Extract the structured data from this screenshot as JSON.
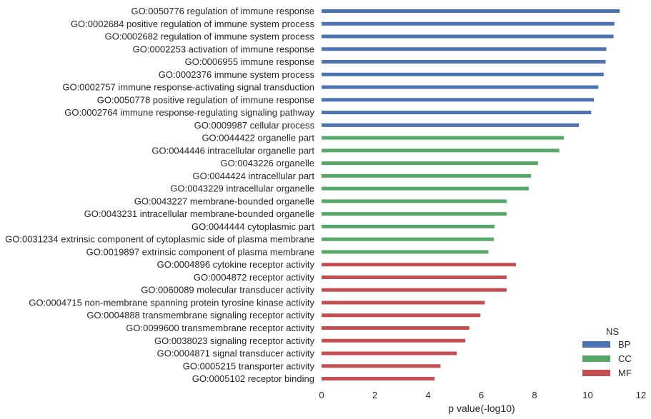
{
  "chart_data": {
    "type": "bar",
    "orientation": "horizontal",
    "xlabel": "p value(-log10)",
    "xlim": [
      0,
      12
    ],
    "xticks": [
      0,
      2,
      4,
      6,
      8,
      10,
      12
    ],
    "grid": false,
    "legend": {
      "title": "NS",
      "placement": "bottom-right",
      "entries": [
        {
          "name": "BP",
          "color": "#4c72b0"
        },
        {
          "name": "CC",
          "color": "#55a868"
        },
        {
          "name": "MF",
          "color": "#c44e52"
        }
      ]
    },
    "categories": [
      {
        "label": "GO:0050776 regulation of immune response",
        "value": 11.2,
        "ns": "BP"
      },
      {
        "label": "GO:0002684 positive regulation of immune system process",
        "value": 11.0,
        "ns": "BP"
      },
      {
        "label": "GO:0002682 regulation of immune system process",
        "value": 10.97,
        "ns": "BP"
      },
      {
        "label": "GO:0002253 activation of immune response",
        "value": 10.7,
        "ns": "BP"
      },
      {
        "label": "GO:0006955 immune response",
        "value": 10.67,
        "ns": "BP"
      },
      {
        "label": "GO:0002376 immune system process",
        "value": 10.6,
        "ns": "BP"
      },
      {
        "label": "GO:0002757 immune response-activating signal transduction",
        "value": 10.4,
        "ns": "BP"
      },
      {
        "label": "GO:0050778 positive regulation of immune response",
        "value": 10.23,
        "ns": "BP"
      },
      {
        "label": "GO:0002764 immune response-regulating signaling pathway",
        "value": 10.13,
        "ns": "BP"
      },
      {
        "label": "GO:0009987 cellular process",
        "value": 9.67,
        "ns": "BP"
      },
      {
        "label": "GO:0044422 organelle part",
        "value": 9.1,
        "ns": "CC"
      },
      {
        "label": "GO:0044446 intracellular organelle part",
        "value": 8.93,
        "ns": "CC"
      },
      {
        "label": "GO:0043226 organelle",
        "value": 8.13,
        "ns": "CC"
      },
      {
        "label": "GO:0044424 intracellular part",
        "value": 7.87,
        "ns": "CC"
      },
      {
        "label": "GO:0043229 intracellular organelle",
        "value": 7.78,
        "ns": "CC"
      },
      {
        "label": "GO:0043227 membrane-bounded organelle",
        "value": 6.95,
        "ns": "CC"
      },
      {
        "label": "GO:0043231 intracellular membrane-bounded organelle",
        "value": 6.95,
        "ns": "CC"
      },
      {
        "label": "GO:0044444 cytoplasmic part",
        "value": 6.5,
        "ns": "CC"
      },
      {
        "label": "GO:0031234 extrinsic component of cytoplasmic side of plasma membrane",
        "value": 6.47,
        "ns": "CC"
      },
      {
        "label": "GO:0019897 extrinsic component of plasma membrane",
        "value": 6.27,
        "ns": "CC"
      },
      {
        "label": "GO:0004896 cytokine receptor activity",
        "value": 7.3,
        "ns": "MF"
      },
      {
        "label": "GO:0004872 receptor activity",
        "value": 6.95,
        "ns": "MF"
      },
      {
        "label": "GO:0060089 molecular transducer activity",
        "value": 6.95,
        "ns": "MF"
      },
      {
        "label": "GO:0004715 non-membrane spanning protein tyrosine kinase activity",
        "value": 6.13,
        "ns": "MF"
      },
      {
        "label": "GO:0004888 transmembrane signaling receptor activity",
        "value": 5.97,
        "ns": "MF"
      },
      {
        "label": "GO:0099600 transmembrane receptor activity",
        "value": 5.55,
        "ns": "MF"
      },
      {
        "label": "GO:0038023 signaling receptor activity",
        "value": 5.4,
        "ns": "MF"
      },
      {
        "label": "GO:0004871 signal transducer activity",
        "value": 5.08,
        "ns": "MF"
      },
      {
        "label": "GO:0005215 transporter activity",
        "value": 4.47,
        "ns": "MF"
      },
      {
        "label": "GO:0005102 receptor binding",
        "value": 4.25,
        "ns": "MF"
      }
    ]
  }
}
